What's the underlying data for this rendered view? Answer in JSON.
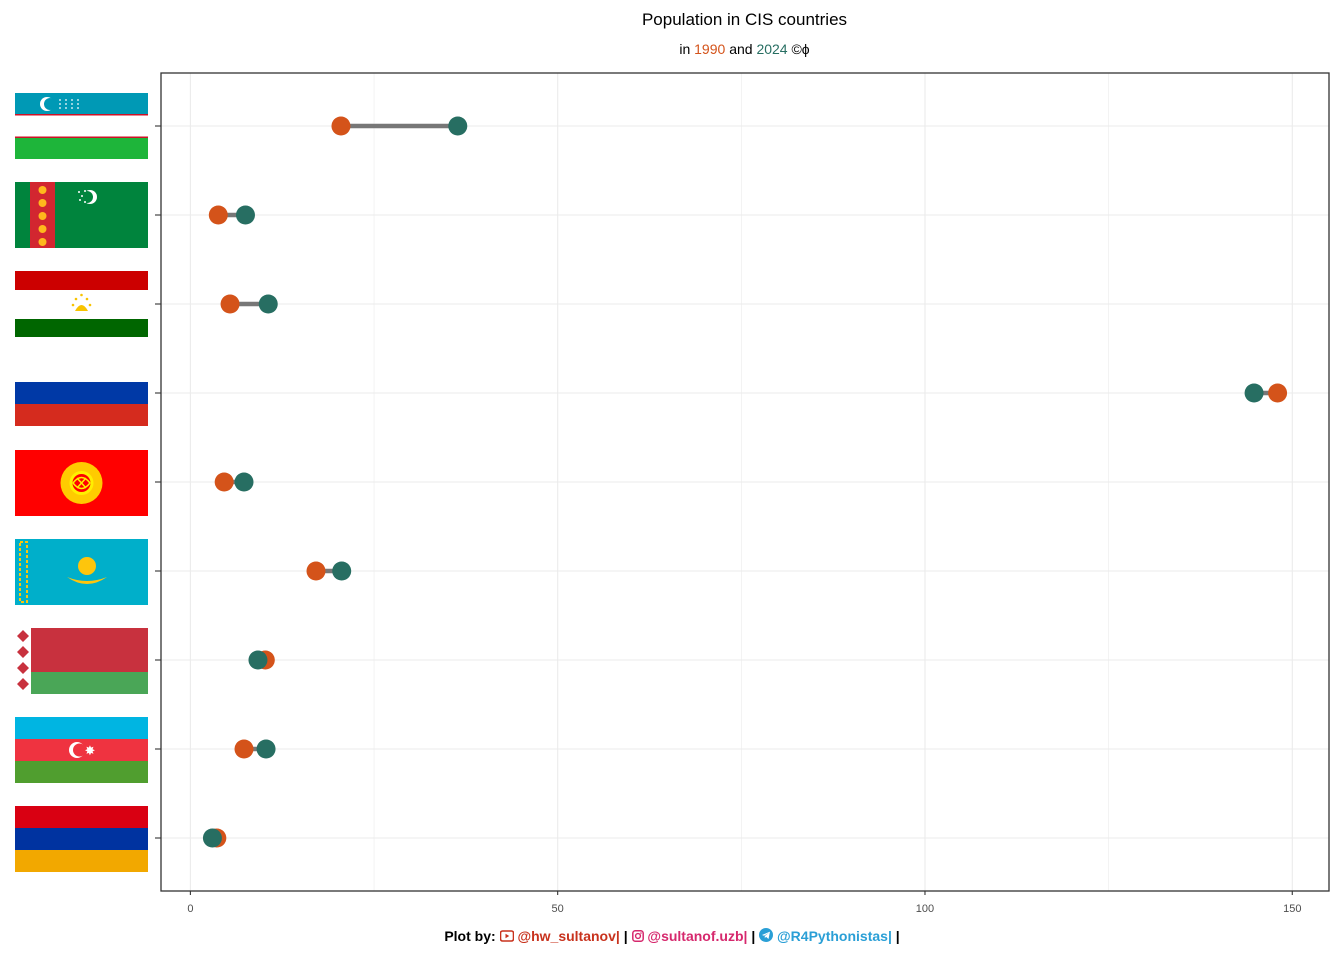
{
  "title": "Population in CIS countries",
  "subtitle": {
    "prefix": "in",
    "year1": "1990",
    "joiner": "and",
    "year2": "2024",
    "suffix": "©ϕ"
  },
  "colors": {
    "y1990": "#d4531a",
    "y2024": "#276e62",
    "segment": "#777777",
    "grid": "#ebebeb"
  },
  "caption": {
    "label": "Plot by:",
    "youtube": "@hw_sultanov",
    "instagram": "@sultanof.uzb",
    "telegram": "@R4Pythonistas",
    "sep": "|"
  },
  "chart_data": {
    "type": "dumbbell",
    "x_ticks": [
      "0",
      "50",
      "100",
      "150"
    ],
    "xlim": [
      -4,
      155
    ],
    "grid": true,
    "categories": [
      "Uzbekistan",
      "Turkmenistan",
      "Tajikistan",
      "Russia",
      "Kyrgyzstan",
      "Kazakhstan",
      "Belarus",
      "Azerbaijan",
      "Armenia"
    ],
    "series": [
      {
        "name": "1990",
        "values": [
          20.5,
          3.8,
          5.4,
          148.0,
          4.6,
          17.1,
          10.2,
          7.3,
          3.6
        ]
      },
      {
        "name": "2024",
        "values": [
          36.4,
          7.5,
          10.6,
          144.8,
          7.3,
          20.6,
          9.2,
          10.3,
          3.0
        ]
      }
    ]
  }
}
